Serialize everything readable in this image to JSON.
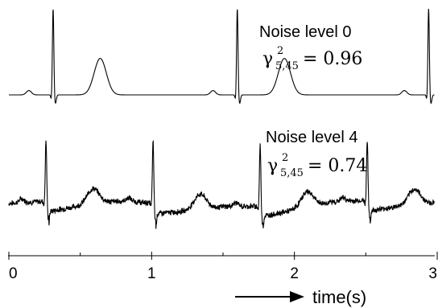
{
  "chart_data": {
    "type": "line",
    "title": "",
    "xlabel": "time(s)",
    "ylabel": "",
    "xlim": [
      0,
      3
    ],
    "x_ticks": [
      "0",
      "1",
      "2",
      "3"
    ],
    "minor_ticks": [
      0.5,
      1.5,
      2.5
    ],
    "grid": false,
    "series": [
      {
        "annotation": "Noise level 0",
        "stat": {
          "symbol": "γ",
          "sup": "2",
          "sub": "5,45",
          "eq": "= 0.96"
        },
        "noise": 0,
        "beats": [
          {
            "r": 0.31,
            "amp": 1.0,
            "t_amp": 0.42
          },
          {
            "r": 1.6,
            "amp": 1.0,
            "t_amp": 0.42
          },
          {
            "r": 2.94,
            "amp": 1.0,
            "t_amp": 0.42
          }
        ]
      },
      {
        "annotation": "Noise level 4",
        "stat": {
          "symbol": "γ",
          "sup": "2",
          "sub": "5,45",
          "eq": "= 0.74"
        },
        "noise": 0.14,
        "beats": [
          {
            "r": 0.26,
            "amp": 0.8,
            "t_amp": 0.2
          },
          {
            "r": 1.01,
            "amp": 0.8,
            "t_amp": 0.2
          },
          {
            "r": 1.76,
            "amp": 0.8,
            "t_amp": 0.2
          },
          {
            "r": 2.51,
            "amp": 0.8,
            "t_amp": 0.2
          }
        ]
      }
    ]
  }
}
